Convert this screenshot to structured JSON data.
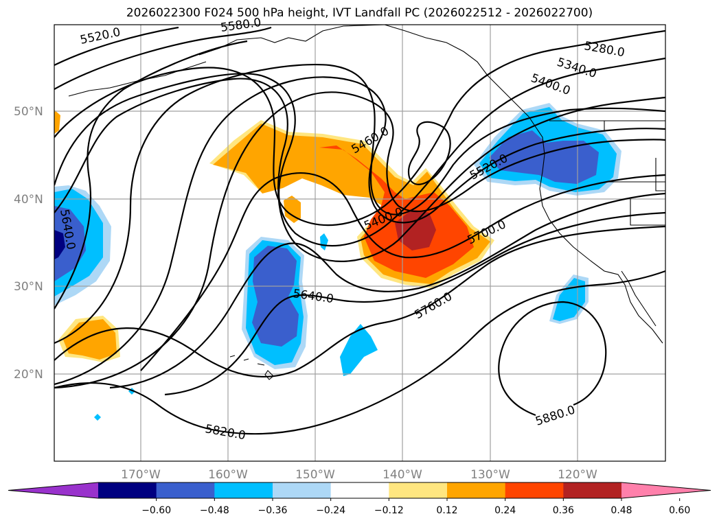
{
  "title": "2026022300 F024 500 hPa height, IVT Landfall PC (2026022512 - 2026022700)",
  "map": {
    "latitudes": [
      "50°N",
      "40°N",
      "30°N",
      "20°N"
    ],
    "longitudes": [
      "170°W",
      "160°W",
      "150°W",
      "140°W",
      "130°W",
      "120°W"
    ]
  },
  "contour_labels": [
    "5520.0",
    "5580.0",
    "5460.0",
    "5400.0",
    "5520.0",
    "5640.0",
    "5700.0",
    "5640.0",
    "5760.0",
    "5820.0",
    "5880.0",
    "5280.0",
    "5340.0",
    "5400.0"
  ],
  "colorbar": {
    "ticks": [
      "−0.60",
      "−0.48",
      "−0.36",
      "−0.24",
      "−0.12",
      "0.12",
      "0.24",
      "0.36",
      "0.48",
      "0.60"
    ],
    "colors": [
      "#9932cc",
      "#000080",
      "#3a5fcd",
      "#00bfff",
      "#add8f6",
      "#ffffff",
      "#ffe680",
      "#ffa500",
      "#ff4500",
      "#b22222",
      "#ff80ab"
    ]
  }
}
